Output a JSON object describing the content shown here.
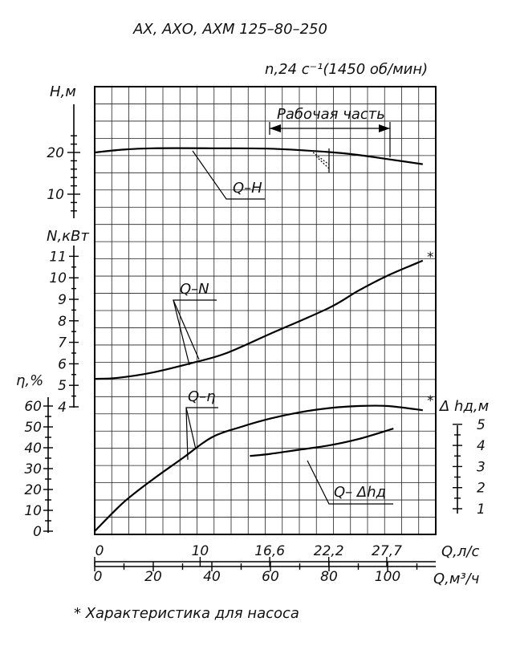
{
  "chart_data": {
    "type": "line",
    "title": "АХ, АХО, АХМ 125–80–250",
    "speed_label": "n,24 c⁻¹(1450 об/мин)",
    "working_range_label": "Рабочая часть",
    "footnote": "* Характеристика для насоса",
    "asterisk": "*",
    "x_axes": {
      "q_ls": {
        "label": "Q,л/с",
        "ticks": [
          "0",
          "10",
          "16,6",
          "22,2",
          "27,7"
        ],
        "tick_values": [
          0,
          10,
          16.6,
          22.2,
          27.7
        ]
      },
      "q_m3h": {
        "label": "Q,м³/ч",
        "ticks": [
          "0",
          "20",
          "40",
          "60",
          "80",
          "100"
        ],
        "tick_values": [
          0,
          20,
          40,
          60,
          80,
          100
        ]
      }
    },
    "y_axes": {
      "H": {
        "label": "Н,м",
        "ticks": [
          "20",
          "10"
        ],
        "tick_values": [
          20,
          10
        ]
      },
      "N": {
        "label": "N,кВт",
        "ticks": [
          "11",
          "10",
          "9",
          "8",
          "7",
          "6",
          "5",
          "4"
        ],
        "tick_values": [
          11,
          10,
          9,
          8,
          7,
          6,
          5,
          4
        ]
      },
      "eta": {
        "label": "η,%",
        "ticks": [
          "60",
          "50",
          "40",
          "30",
          "20",
          "10",
          "0"
        ],
        "tick_values": [
          60,
          50,
          40,
          30,
          20,
          10,
          0
        ]
      },
      "dh": {
        "label": "Δ hд,м",
        "ticks": [
          "5",
          "4",
          "3",
          "2",
          "1"
        ],
        "tick_values": [
          5,
          4,
          3,
          2,
          1
        ]
      }
    },
    "working_range_q_m3h": [
      60,
      100
    ],
    "series": [
      {
        "name": "Q–H",
        "axis": "H",
        "x": [
          0,
          10,
          20,
          40,
          60,
          80,
          90,
          100,
          112
        ],
        "y": [
          20,
          20.7,
          21,
          21,
          20.9,
          20.1,
          19.4,
          18.4,
          17.2
        ]
      },
      {
        "name": "Q–N",
        "axis": "N",
        "x": [
          0,
          8,
          20,
          35,
          45,
          60,
          80,
          90,
          100,
          112
        ],
        "y": [
          5.3,
          5.35,
          5.6,
          6.1,
          6.5,
          7.4,
          8.6,
          9.4,
          10.1,
          10.8
        ]
      },
      {
        "name": "Q–η",
        "axis": "eta",
        "x": [
          0,
          10,
          20,
          30,
          40,
          50,
          60,
          70,
          80,
          90,
          100,
          112
        ],
        "y": [
          0,
          14,
          25,
          35,
          45,
          50,
          54,
          57,
          59,
          60,
          60,
          58
        ]
      },
      {
        "name": "Q– Δhд",
        "axis": "dh",
        "x": [
          53,
          60,
          70,
          80,
          90,
          102
        ],
        "y": [
          3.5,
          3.6,
          3.8,
          4.0,
          4.3,
          4.8
        ]
      }
    ]
  }
}
